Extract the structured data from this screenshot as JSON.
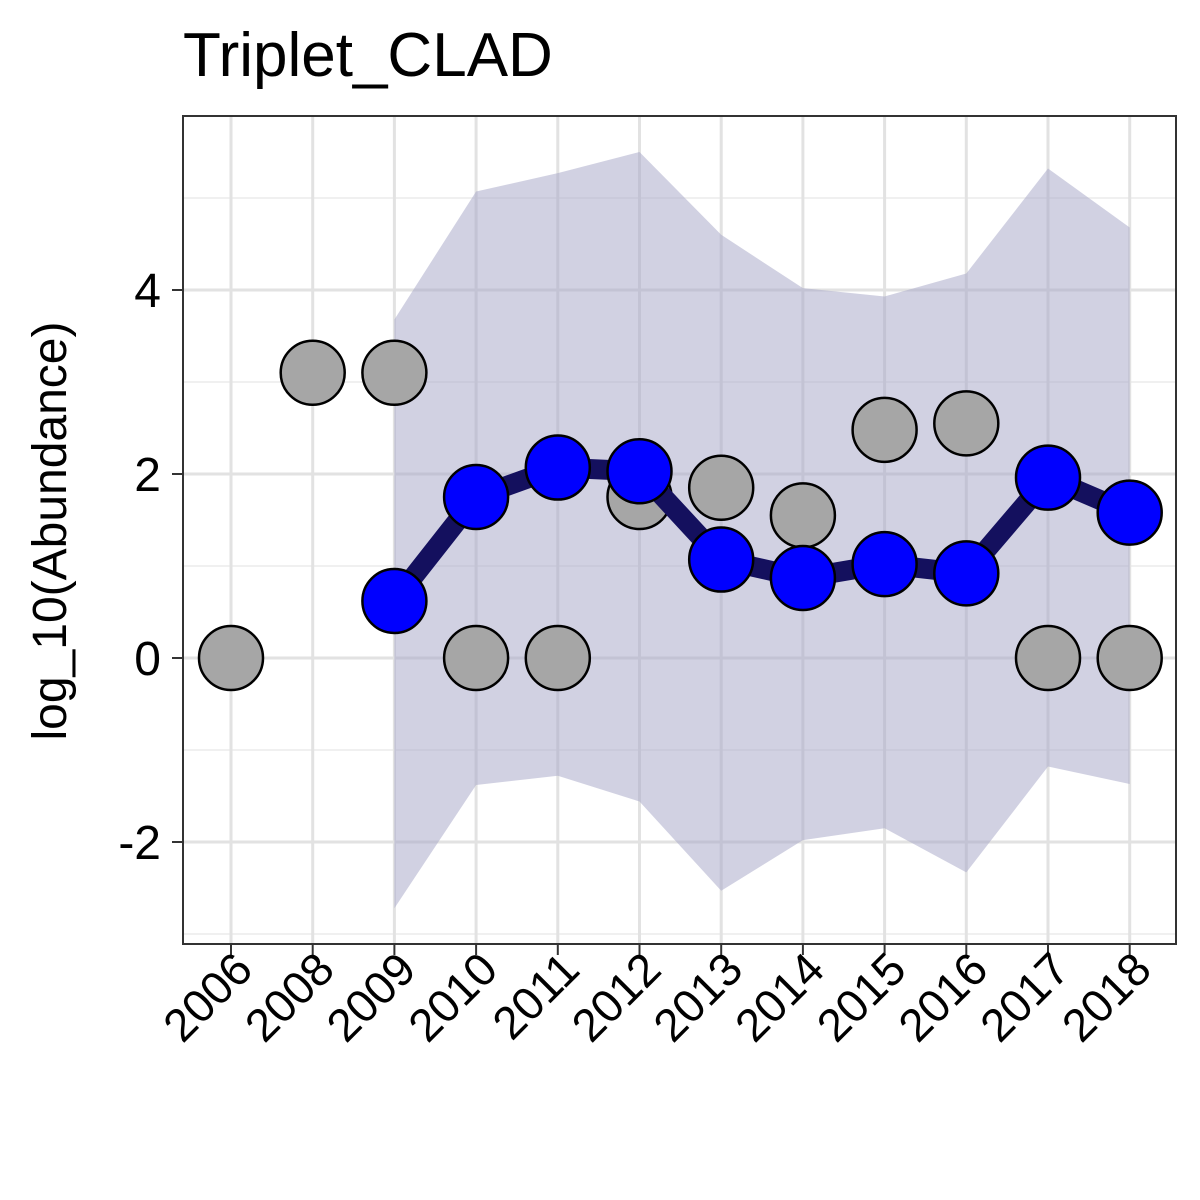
{
  "chart_data": {
    "type": "line",
    "title": "Triplet_CLAD",
    "xlabel": "",
    "ylabel": "log_10(Abundance)",
    "categories": [
      "2006",
      "2008",
      "2009",
      "2010",
      "2011",
      "2012",
      "2013",
      "2014",
      "2015",
      "2016",
      "2017",
      "2018"
    ],
    "ylim": [
      -3.1,
      5.9
    ],
    "yticks": [
      -2,
      0,
      2,
      4
    ],
    "ytick_labels": [
      "-2",
      "0",
      "2",
      "4"
    ],
    "grid": true,
    "observed": {
      "values": [
        0,
        3.1,
        3.1,
        0,
        0,
        1.75,
        1.85,
        1.55,
        2.48,
        2.55,
        0,
        0
      ],
      "color": "#a6a6a6"
    },
    "fitted": {
      "values": [
        null,
        null,
        0.62,
        1.75,
        2.07,
        2.03,
        1.07,
        0.87,
        1.02,
        0.92,
        1.96,
        1.58
      ],
      "color": "#0000ff",
      "line_color": "#14105e"
    },
    "interval": {
      "lower": [
        null,
        null,
        -2.72,
        -1.38,
        -1.28,
        -1.56,
        -2.53,
        -1.98,
        -1.85,
        -2.33,
        -1.18,
        -1.37
      ],
      "upper": [
        null,
        null,
        3.68,
        5.07,
        5.27,
        5.5,
        4.6,
        4.02,
        3.93,
        4.18,
        5.32,
        4.68
      ],
      "color": "#a4a4c6"
    }
  }
}
